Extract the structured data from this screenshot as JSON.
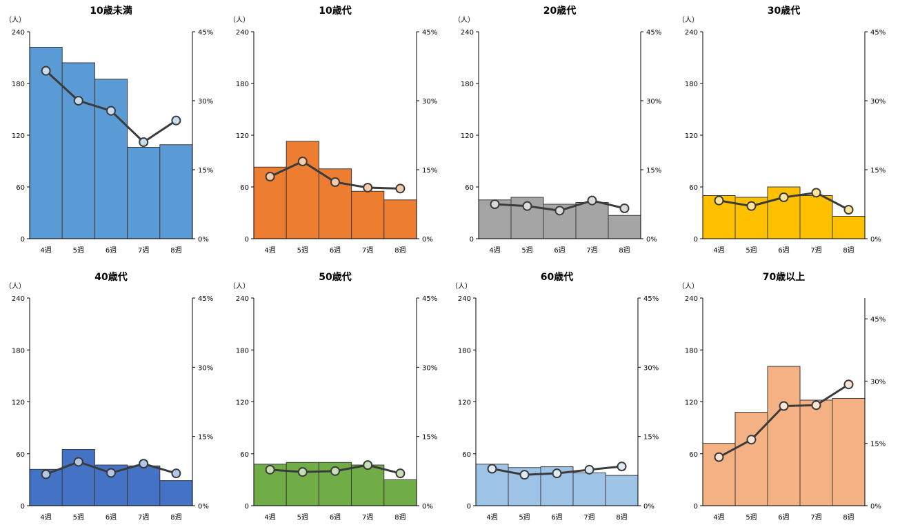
{
  "chart_data": [
    {
      "type": "bar",
      "title": "10歳未満",
      "unit_left": "（人）",
      "categories": [
        "4週",
        "5週",
        "6週",
        "7週",
        "8週"
      ],
      "ylim": [
        0,
        240
      ],
      "yticks": [
        0,
        60,
        120,
        180,
        240
      ],
      "y2lim": [
        0,
        45
      ],
      "y2ticks": [
        "0%",
        "15%",
        "30%",
        "45%"
      ],
      "series": [
        {
          "kind": "bar",
          "values": [
            222,
            204,
            185,
            106,
            109
          ]
        },
        {
          "kind": "line",
          "axis": "right",
          "values": [
            36.5,
            30,
            27.8,
            21,
            25.7
          ]
        }
      ],
      "colors": {
        "bar": "#5B9BD5",
        "marker": "#C9DDF1"
      }
    },
    {
      "type": "bar",
      "title": "10歳代",
      "unit_left": "（人）",
      "categories": [
        "4週",
        "5週",
        "6週",
        "7週",
        "8週"
      ],
      "ylim": [
        0,
        240
      ],
      "yticks": [
        0,
        60,
        120,
        180,
        240
      ],
      "y2lim": [
        0,
        45
      ],
      "y2ticks": [
        "0%",
        "15%",
        "30%",
        "45%"
      ],
      "series": [
        {
          "kind": "bar",
          "values": [
            83,
            113,
            81,
            55,
            45
          ]
        },
        {
          "kind": "line",
          "axis": "right",
          "values": [
            13.5,
            16.8,
            12.3,
            11.1,
            10.9
          ]
        }
      ],
      "colors": {
        "bar": "#ED7D31",
        "marker": "#F8CBAD"
      }
    },
    {
      "type": "bar",
      "title": "20歳代",
      "unit_left": "（人）",
      "categories": [
        "4週",
        "5週",
        "6週",
        "7週",
        "8週"
      ],
      "ylim": [
        0,
        240
      ],
      "yticks": [
        0,
        60,
        120,
        180,
        240
      ],
      "y2lim": [
        0,
        45
      ],
      "y2ticks": [
        "0%",
        "15%",
        "30%",
        "45%"
      ],
      "series": [
        {
          "kind": "bar",
          "values": [
            45,
            48,
            40,
            42,
            27
          ]
        },
        {
          "kind": "line",
          "axis": "right",
          "values": [
            7.5,
            7.1,
            6.1,
            8.3,
            6.6
          ]
        }
      ],
      "colors": {
        "bar": "#A5A5A5",
        "marker": "#DBDBDB"
      }
    },
    {
      "type": "bar",
      "title": "30歳代",
      "unit_left": "（人）",
      "categories": [
        "4週",
        "5週",
        "6週",
        "7週",
        "8週"
      ],
      "ylim": [
        0,
        240
      ],
      "yticks": [
        0,
        60,
        120,
        180,
        240
      ],
      "y2lim": [
        0,
        45
      ],
      "y2ticks": [
        "0%",
        "15%",
        "30%",
        "45%"
      ],
      "series": [
        {
          "kind": "bar",
          "values": [
            50,
            48,
            60,
            50,
            26
          ]
        },
        {
          "kind": "line",
          "axis": "right",
          "values": [
            8.3,
            7.1,
            9.0,
            10.0,
            6.3
          ]
        }
      ],
      "colors": {
        "bar": "#FFC000",
        "marker": "#FFE699"
      }
    },
    {
      "type": "bar",
      "title": "40歳代",
      "unit_left": "（人）",
      "categories": [
        "4週",
        "5週",
        "6週",
        "7週",
        "8週"
      ],
      "ylim": [
        0,
        240
      ],
      "yticks": [
        0,
        60,
        120,
        180,
        240
      ],
      "y2lim": [
        0,
        45
      ],
      "y2ticks": [
        "0%",
        "15%",
        "30%",
        "45%"
      ],
      "series": [
        {
          "kind": "bar",
          "values": [
            42,
            65,
            47,
            46,
            29
          ]
        },
        {
          "kind": "line",
          "axis": "right",
          "values": [
            6.8,
            9.5,
            7.1,
            9.1,
            7.0
          ]
        }
      ],
      "colors": {
        "bar": "#4472C4",
        "marker": "#B4C7E7"
      }
    },
    {
      "type": "bar",
      "title": "50歳代",
      "unit_left": "（人）",
      "categories": [
        "4週",
        "5週",
        "6週",
        "7週",
        "8週"
      ],
      "ylim": [
        0,
        240
      ],
      "yticks": [
        0,
        60,
        120,
        180,
        240
      ],
      "y2lim": [
        0,
        45
      ],
      "y2ticks": [
        "0%",
        "15%",
        "30%",
        "45%"
      ],
      "series": [
        {
          "kind": "bar",
          "values": [
            48,
            50,
            50,
            47,
            30
          ]
        },
        {
          "kind": "line",
          "axis": "right",
          "values": [
            7.8,
            7.3,
            7.5,
            8.8,
            7.0
          ]
        }
      ],
      "colors": {
        "bar": "#70AD47",
        "marker": "#C5E0B4"
      }
    },
    {
      "type": "bar",
      "title": "60歳代",
      "unit_left": "（人）",
      "categories": [
        "4週",
        "5週",
        "6週",
        "7週",
        "8週"
      ],
      "ylim": [
        0,
        240
      ],
      "yticks": [
        0,
        60,
        120,
        180,
        240
      ],
      "y2lim": [
        0,
        45
      ],
      "y2ticks": [
        "0%",
        "15%",
        "30%",
        "45%"
      ],
      "series": [
        {
          "kind": "bar",
          "values": [
            48,
            44,
            45,
            38,
            35
          ]
        },
        {
          "kind": "line",
          "axis": "right",
          "values": [
            8.0,
            6.7,
            7.0,
            7.8,
            8.5
          ]
        }
      ],
      "colors": {
        "bar": "#9DC3E6",
        "marker": "#DEEBF7"
      }
    },
    {
      "type": "bar",
      "title": "70歳以上",
      "unit_left": "（人）",
      "categories": [
        "4週",
        "5週",
        "6週",
        "7週",
        "8週"
      ],
      "ylim": [
        0,
        240
      ],
      "yticks": [
        0,
        60,
        120,
        180,
        240
      ],
      "y2lim": [
        0,
        50
      ],
      "y2ticks": [
        "0%",
        "15%",
        "30%",
        "45%"
      ],
      "series": [
        {
          "kind": "bar",
          "values": [
            72,
            108,
            161,
            122,
            124
          ]
        },
        {
          "kind": "line",
          "axis": "right",
          "values": [
            11.7,
            15.9,
            24.0,
            24.2,
            29.2
          ]
        }
      ],
      "colors": {
        "bar": "#F4B183",
        "marker": "#FBE5D6"
      }
    }
  ]
}
